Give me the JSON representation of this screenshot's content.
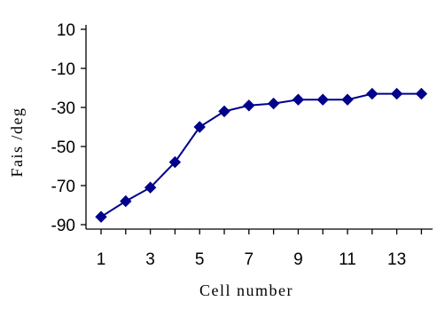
{
  "chart_data": {
    "type": "line",
    "title": "",
    "xlabel": "Cell  number",
    "ylabel": "Fais /deg",
    "xlim": [
      0.5,
      14.5
    ],
    "ylim": [
      -90,
      10
    ],
    "x_ticks": [
      1,
      3,
      5,
      7,
      9,
      11,
      13
    ],
    "x_tick_labels": [
      "1",
      "3",
      "5",
      "7",
      "9",
      "11",
      "13"
    ],
    "y_ticks": [
      10,
      -10,
      -30,
      -50,
      -70,
      -90
    ],
    "y_tick_labels": [
      "10",
      "-10",
      "-30",
      "-50",
      "-70",
      "-90"
    ],
    "grid": false,
    "legend": "none",
    "series": [
      {
        "color": "#00008b",
        "marker": "diamond",
        "x": [
          1,
          2,
          3,
          4,
          5,
          6,
          7,
          8,
          9,
          10,
          11,
          12,
          13,
          14
        ],
        "y": [
          -86,
          -78,
          -71,
          -58,
          -40,
          -32,
          -29,
          -28,
          -26,
          -26,
          -26,
          -23,
          -23,
          -23
        ]
      }
    ]
  }
}
